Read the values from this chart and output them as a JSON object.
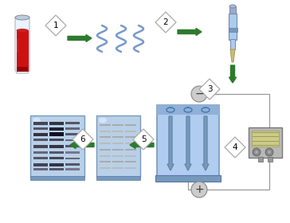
{
  "bg_color": "#ffffff",
  "arrow_color": "#2d7a2d",
  "gel_blue": "#a8c8e8",
  "gel_dark_blue": "#7aaac8",
  "diamond_fill": "#ffffff",
  "diamond_edge": "#aaaaaa",
  "tube_red_dark": "#990000",
  "tube_red": "#cc1111",
  "tube_glass": "#ccdddd",
  "dna_color": "#7799cc",
  "pipette_body": "#aaccee",
  "pipette_dark": "#7799bb",
  "pipette_tip": "#ccbb77",
  "device_fill": "#bbbbbb",
  "device_edge": "#888888",
  "screen_fill": "#cccc99",
  "electrode_fill": "#cccccc",
  "wire_color": "#999999",
  "band_col1": "#555566",
  "band_col2": "#444455",
  "band_col3": "#666677",
  "band_light": "#999999"
}
